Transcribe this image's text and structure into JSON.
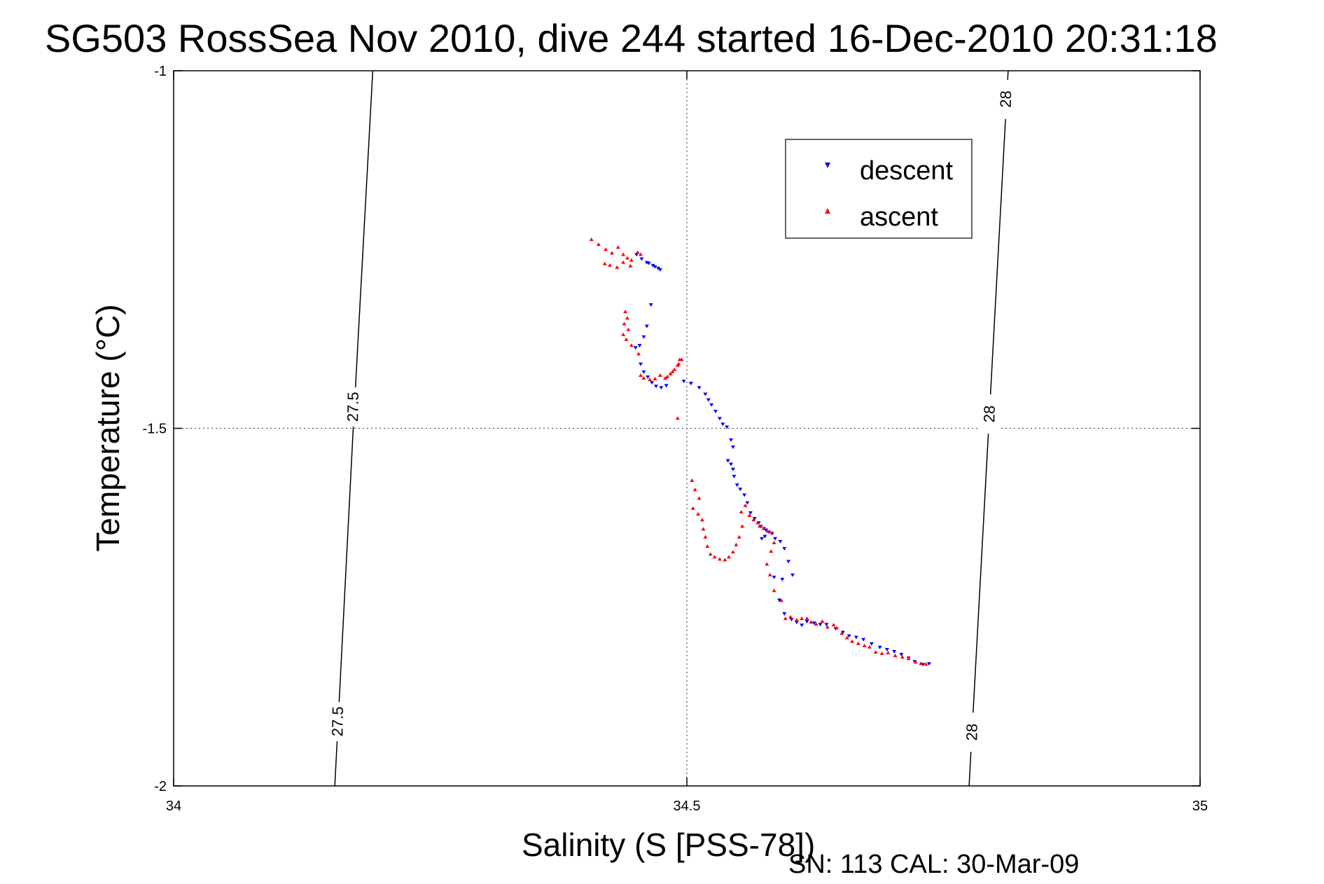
{
  "chart_data": {
    "type": "scatter",
    "title": "SG503 RossSea Nov 2010, dive 244 started 16-Dec-2010 20:31:18",
    "xlabel": "Salinity (S [PSS-78])",
    "ylabel": "Temperature (°C)",
    "xlim": [
      34,
      35
    ],
    "ylim": [
      -2,
      -1
    ],
    "x_ticks": [
      34,
      34.5,
      35
    ],
    "x_tick_labels": [
      "34",
      "34.5",
      "35"
    ],
    "y_ticks": [
      -2,
      -1.5,
      -1
    ],
    "y_tick_labels": [
      "-2",
      "-1.5",
      "-1"
    ],
    "grid": true,
    "legend": {
      "placement": "upper-right",
      "entries": [
        "descent",
        "ascent"
      ]
    },
    "footer": "SN: 113  CAL: 30-Mar-09",
    "isopycnals": [
      {
        "sigma": "27.5",
        "points": [
          [
            34.194,
            -1.0
          ],
          [
            34.175,
            -1.5
          ],
          [
            34.157,
            -2.0
          ]
        ],
        "labels": [
          {
            "text": "27.5",
            "at": [
              34.175,
              -1.47
            ]
          },
          {
            "text": "27.5",
            "at": [
              34.16,
              -1.91
            ]
          }
        ]
      },
      {
        "sigma": "28",
        "points": [
          [
            34.813,
            -1.0
          ],
          [
            34.794,
            -1.5
          ],
          [
            34.775,
            -2.0
          ]
        ],
        "labels": [
          {
            "text": "28",
            "at": [
              34.811,
              -1.04
            ]
          },
          {
            "text": "28",
            "at": [
              34.795,
              -1.48
            ]
          },
          {
            "text": "28",
            "at": [
              34.778,
              -1.925
            ]
          }
        ]
      }
    ],
    "series": [
      {
        "name": "descent",
        "color": "#0000ff",
        "marker": "triangle-down",
        "points": [
          [
            34.451,
            -1.257
          ],
          [
            34.456,
            -1.263
          ],
          [
            34.461,
            -1.268
          ],
          [
            34.467,
            -1.272
          ],
          [
            34.472,
            -1.276
          ],
          [
            34.474,
            -1.278
          ],
          [
            34.469,
            -1.274
          ],
          [
            34.463,
            -1.269
          ],
          [
            34.465,
            -1.327
          ],
          [
            34.461,
            -1.357
          ],
          [
            34.458,
            -1.372
          ],
          [
            34.454,
            -1.384
          ],
          [
            34.45,
            -1.387
          ],
          [
            34.455,
            -1.41
          ],
          [
            34.458,
            -1.421
          ],
          [
            34.462,
            -1.428
          ],
          [
            34.466,
            -1.436
          ],
          [
            34.47,
            -1.441
          ],
          [
            34.475,
            -1.443
          ],
          [
            34.48,
            -1.44
          ],
          [
            34.497,
            -1.434
          ],
          [
            34.504,
            -1.437
          ],
          [
            34.512,
            -1.443
          ],
          [
            34.518,
            -1.452
          ],
          [
            34.521,
            -1.46
          ],
          [
            34.524,
            -1.467
          ],
          [
            34.528,
            -1.476
          ],
          [
            34.532,
            -1.486
          ],
          [
            34.535,
            -1.494
          ],
          [
            34.539,
            -1.498
          ],
          [
            34.543,
            -1.516
          ],
          [
            34.545,
            -1.526
          ],
          [
            34.54,
            -1.545
          ],
          [
            34.543,
            -1.55
          ],
          [
            34.545,
            -1.557
          ],
          [
            34.546,
            -1.567
          ],
          [
            34.549,
            -1.579
          ],
          [
            34.552,
            -1.585
          ],
          [
            34.556,
            -1.593
          ],
          [
            34.559,
            -1.604
          ],
          [
            34.562,
            -1.618
          ],
          [
            34.566,
            -1.626
          ],
          [
            34.57,
            -1.632
          ],
          [
            34.572,
            -1.637
          ],
          [
            34.575,
            -1.64
          ],
          [
            34.577,
            -1.642
          ],
          [
            34.58,
            -1.645
          ],
          [
            34.583,
            -1.647
          ],
          [
            34.576,
            -1.651
          ],
          [
            34.573,
            -1.654
          ],
          [
            34.586,
            -1.654
          ],
          [
            34.591,
            -1.658
          ],
          [
            34.595,
            -1.668
          ],
          [
            34.599,
            -1.686
          ],
          [
            34.603,
            -1.705
          ],
          [
            34.593,
            -1.711
          ],
          [
            34.585,
            -1.708
          ],
          [
            34.59,
            -1.74
          ],
          [
            34.595,
            -1.759
          ],
          [
            34.602,
            -1.767
          ],
          [
            34.607,
            -1.771
          ],
          [
            34.612,
            -1.775
          ],
          [
            34.617,
            -1.77
          ],
          [
            34.624,
            -1.772
          ],
          [
            34.63,
            -1.774
          ],
          [
            34.636,
            -1.774
          ],
          [
            34.645,
            -1.78
          ],
          [
            34.652,
            -1.785
          ],
          [
            34.658,
            -1.79
          ],
          [
            34.665,
            -1.792
          ],
          [
            34.672,
            -1.795
          ],
          [
            34.68,
            -1.801
          ],
          [
            34.688,
            -1.806
          ],
          [
            34.695,
            -1.809
          ],
          [
            34.702,
            -1.812
          ],
          [
            34.709,
            -1.816
          ],
          [
            34.716,
            -1.821
          ],
          [
            34.722,
            -1.826
          ],
          [
            34.73,
            -1.83
          ],
          [
            34.736,
            -1.829
          ]
        ]
      },
      {
        "name": "ascent",
        "color": "#ff0000",
        "marker": "triangle-up",
        "points": [
          [
            34.407,
            -1.236
          ],
          [
            34.414,
            -1.243
          ],
          [
            34.421,
            -1.25
          ],
          [
            34.427,
            -1.255
          ],
          [
            34.433,
            -1.247
          ],
          [
            34.438,
            -1.257
          ],
          [
            34.442,
            -1.262
          ],
          [
            34.446,
            -1.265
          ],
          [
            34.452,
            -1.254
          ],
          [
            34.455,
            -1.257
          ],
          [
            34.42,
            -1.27
          ],
          [
            34.425,
            -1.272
          ],
          [
            34.432,
            -1.275
          ],
          [
            34.438,
            -1.268
          ],
          [
            34.445,
            -1.273
          ],
          [
            34.44,
            -1.337
          ],
          [
            34.442,
            -1.346
          ],
          [
            34.439,
            -1.354
          ],
          [
            34.443,
            -1.362
          ],
          [
            34.438,
            -1.369
          ],
          [
            34.441,
            -1.376
          ],
          [
            34.446,
            -1.384
          ],
          [
            34.453,
            -1.396
          ],
          [
            34.455,
            -1.426
          ],
          [
            34.458,
            -1.43
          ],
          [
            34.464,
            -1.432
          ],
          [
            34.469,
            -1.431
          ],
          [
            34.474,
            -1.426
          ],
          [
            34.479,
            -1.43
          ],
          [
            34.484,
            -1.424
          ],
          [
            34.488,
            -1.418
          ],
          [
            34.491,
            -1.412
          ],
          [
            34.493,
            -1.404
          ],
          [
            34.495,
            -1.404
          ],
          [
            34.492,
            -1.41
          ],
          [
            34.486,
            -1.421
          ],
          [
            34.481,
            -1.428
          ],
          [
            34.491,
            -1.486
          ],
          [
            34.505,
            -1.573
          ],
          [
            34.508,
            -1.586
          ],
          [
            34.512,
            -1.598
          ],
          [
            34.506,
            -1.612
          ],
          [
            34.511,
            -1.62
          ],
          [
            34.515,
            -1.628
          ],
          [
            34.516,
            -1.641
          ],
          [
            34.518,
            -1.652
          ],
          [
            34.52,
            -1.665
          ],
          [
            34.523,
            -1.676
          ],
          [
            34.527,
            -1.68
          ],
          [
            34.532,
            -1.683
          ],
          [
            34.537,
            -1.684
          ],
          [
            34.541,
            -1.68
          ],
          [
            34.545,
            -1.673
          ],
          [
            34.548,
            -1.663
          ],
          [
            34.551,
            -1.652
          ],
          [
            34.554,
            -1.637
          ],
          [
            34.553,
            -1.617
          ],
          [
            34.557,
            -1.608
          ],
          [
            34.561,
            -1.622
          ],
          [
            34.565,
            -1.628
          ],
          [
            34.569,
            -1.632
          ],
          [
            34.571,
            -1.637
          ],
          [
            34.575,
            -1.64
          ],
          [
            34.579,
            -1.644
          ],
          [
            34.583,
            -1.646
          ],
          [
            34.585,
            -1.66
          ],
          [
            34.582,
            -1.672
          ],
          [
            34.578,
            -1.69
          ],
          [
            34.581,
            -1.705
          ],
          [
            34.585,
            -1.727
          ],
          [
            34.592,
            -1.741
          ],
          [
            34.596,
            -1.766
          ],
          [
            34.601,
            -1.764
          ],
          [
            34.607,
            -1.768
          ],
          [
            34.612,
            -1.766
          ],
          [
            34.617,
            -1.766
          ],
          [
            34.621,
            -1.771
          ],
          [
            34.626,
            -1.774
          ],
          [
            34.632,
            -1.77
          ],
          [
            34.637,
            -1.778
          ],
          [
            34.643,
            -1.775
          ],
          [
            34.646,
            -1.779
          ],
          [
            34.651,
            -1.787
          ],
          [
            34.656,
            -1.793
          ],
          [
            34.661,
            -1.798
          ],
          [
            34.667,
            -1.801
          ],
          [
            34.673,
            -1.804
          ],
          [
            34.678,
            -1.806
          ],
          [
            34.684,
            -1.813
          ],
          [
            34.69,
            -1.815
          ],
          [
            34.696,
            -1.814
          ],
          [
            34.703,
            -1.818
          ],
          [
            34.71,
            -1.82
          ],
          [
            34.716,
            -1.822
          ],
          [
            34.723,
            -1.827
          ],
          [
            34.728,
            -1.829
          ],
          [
            34.733,
            -1.83
          ]
        ]
      }
    ]
  }
}
